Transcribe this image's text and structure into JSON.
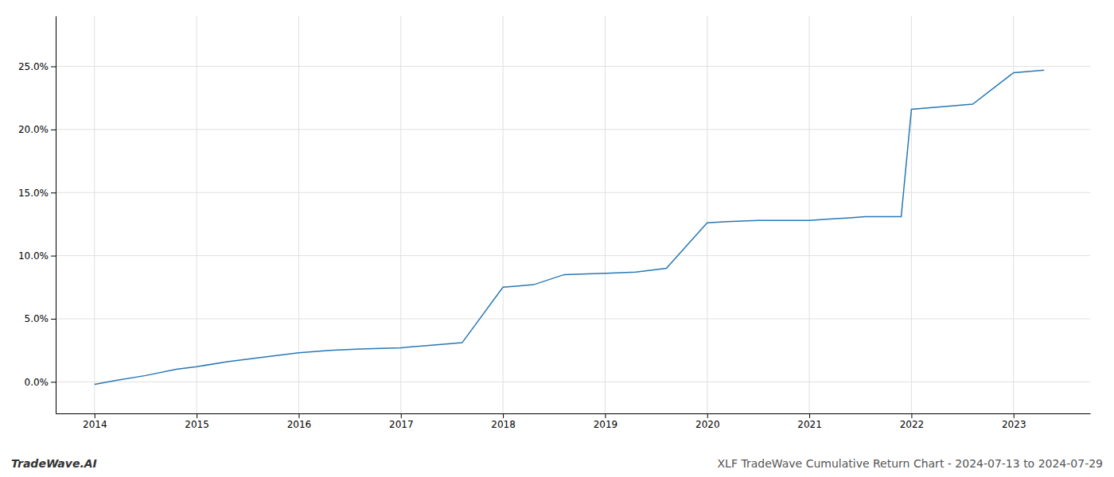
{
  "chart_data": {
    "type": "line",
    "title": "XLF TradeWave Cumulative Return Chart - 2024-07-13 to 2024-07-29",
    "annotations": [
      "TradeWave.AI"
    ],
    "x": [
      2014.0,
      2014.2,
      2014.5,
      2014.8,
      2015.0,
      2015.3,
      2015.7,
      2016.0,
      2016.3,
      2016.6,
      2017.0,
      2017.3,
      2017.6,
      2018.0,
      2018.15,
      2018.3,
      2018.6,
      2019.0,
      2019.3,
      2019.6,
      2020.0,
      2020.2,
      2020.5,
      2021.0,
      2021.2,
      2021.4,
      2021.55,
      2021.9,
      2022.0,
      2022.3,
      2022.6,
      2023.0,
      2023.3
    ],
    "values": [
      -0.002,
      0.001,
      0.005,
      0.01,
      0.012,
      0.016,
      0.02,
      0.023,
      0.025,
      0.026,
      0.027,
      0.029,
      0.031,
      0.075,
      0.076,
      0.077,
      0.085,
      0.086,
      0.087,
      0.09,
      0.126,
      0.127,
      0.128,
      0.128,
      0.129,
      0.13,
      0.131,
      0.131,
      0.216,
      0.218,
      0.22,
      0.245,
      0.247
    ],
    "color": "#2878b5",
    "xlim": [
      2013.62,
      2023.75
    ],
    "ylim": [
      -0.025,
      0.29
    ],
    "xticks": [
      2014,
      2015,
      2016,
      2017,
      2018,
      2019,
      2020,
      2021,
      2022,
      2023
    ],
    "yticks": [
      {
        "value": 0.0,
        "label": "0.0%"
      },
      {
        "value": 0.05,
        "label": "5.0%"
      },
      {
        "value": 0.1,
        "label": "10.0%"
      },
      {
        "value": 0.15,
        "label": "15.0%"
      },
      {
        "value": 0.2,
        "label": "20.0%"
      },
      {
        "value": 0.25,
        "label": "25.0%"
      }
    ],
    "grid": true
  }
}
